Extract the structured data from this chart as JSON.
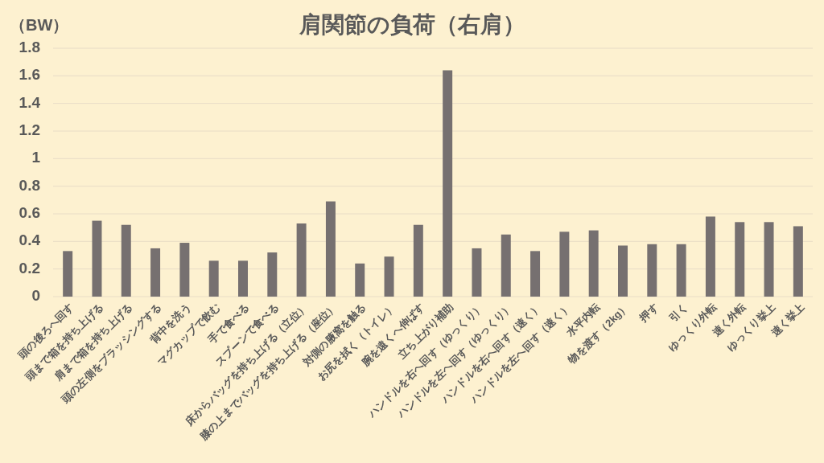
{
  "chart_data": {
    "type": "bar",
    "title": "肩関節の負荷（右肩）",
    "ylabel": "（BW）",
    "categories": [
      "頭の後ろへ回す",
      "頭まで箱を持ち上げる",
      "肩まで箱を持ち上げる",
      "頭の左側をブラッシングする",
      "背中を洗う",
      "マグカップで飲む",
      "手で食べる",
      "スプーンで食べる",
      "床からバッグを持ち上げる（立位）",
      "膝の上までバッグを持ち上げる（座位）",
      "対側の腋窩を触る",
      "お尻を拭く（トイレ）",
      "腕を遠くへ伸ばす",
      "立ち上がり補助",
      "ハンドルを右へ回す（ゆっくり）",
      "ハンドルを左へ回す（ゆっくり）",
      "ハンドルを右へ回す（速く）",
      "ハンドルを左へ回す（速く）",
      "水平内転",
      "物を渡す（2kg）",
      "押す",
      "引く",
      "ゆっくり外転",
      "速く外転",
      "ゆっくり挙上",
      "速く挙上"
    ],
    "values": [
      0.33,
      0.55,
      0.52,
      0.35,
      0.39,
      0.26,
      0.26,
      0.32,
      0.53,
      0.69,
      0.24,
      0.29,
      0.52,
      1.64,
      0.35,
      0.45,
      0.33,
      0.47,
      0.48,
      0.37,
      0.38,
      0.38,
      0.58,
      0.54,
      0.54,
      0.51
    ],
    "color": "#767070",
    "ylim": [
      0,
      1.8
    ],
    "yticks": [
      0,
      0.2,
      0.4,
      0.6,
      0.8,
      1,
      1.2,
      1.4,
      1.6,
      1.8
    ],
    "grid": "y"
  }
}
